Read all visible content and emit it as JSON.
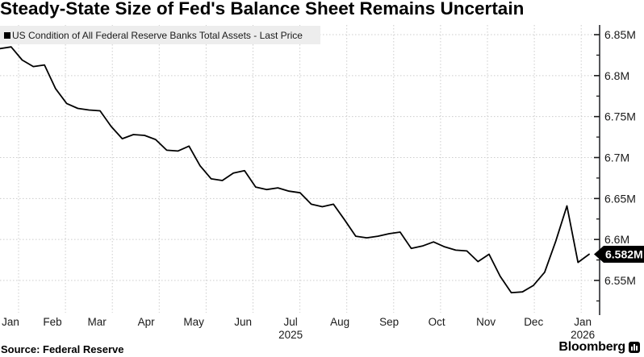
{
  "title": "Steady-State Size of Fed's Balance Sheet Remains Uncertain",
  "legend": {
    "marker_icon": "black-square",
    "label": "US Condition of All Federal Reserve Banks Total Assets - Last Price"
  },
  "footer": {
    "source": "Source: Federal Reserve",
    "brand": "Bloomberg",
    "brand_icon": "bloomberg-terminal-icon"
  },
  "chart_data": {
    "type": "line",
    "title": "Steady-State Size of Fed's Balance Sheet Remains Uncertain",
    "ylabel": "",
    "xlabel": "",
    "unit": "M",
    "grid": "dotted",
    "legend_position": "top-left",
    "series": [
      {
        "name": "US Condition of All Federal Reserve Banks Total Assets - Last Price",
        "color": "#000000",
        "dates": [
          "2025-01-01",
          "2025-01-08",
          "2025-01-15",
          "2025-01-22",
          "2025-01-29",
          "2025-02-05",
          "2025-02-12",
          "2025-02-19",
          "2025-02-26",
          "2025-03-05",
          "2025-03-12",
          "2025-03-19",
          "2025-03-26",
          "2025-04-02",
          "2025-04-09",
          "2025-04-16",
          "2025-04-23",
          "2025-04-30",
          "2025-05-07",
          "2025-05-14",
          "2025-05-21",
          "2025-05-28",
          "2025-06-04",
          "2025-06-11",
          "2025-06-18",
          "2025-06-25",
          "2025-07-02",
          "2025-07-09",
          "2025-07-16",
          "2025-07-23",
          "2025-07-30",
          "2025-08-06",
          "2025-08-13",
          "2025-08-20",
          "2025-08-27",
          "2025-09-03",
          "2025-09-10",
          "2025-09-17",
          "2025-09-24",
          "2025-10-01",
          "2025-10-08",
          "2025-10-15",
          "2025-10-22",
          "2025-10-29",
          "2025-11-05",
          "2025-11-12",
          "2025-11-19",
          "2025-11-26",
          "2025-12-03",
          "2025-12-10",
          "2025-12-17",
          "2025-12-24",
          "2025-12-31",
          "2026-01-07"
        ],
        "values": [
          6.833,
          6.835,
          6.819,
          6.811,
          6.813,
          6.784,
          6.766,
          6.76,
          6.758,
          6.757,
          6.738,
          6.723,
          6.728,
          6.727,
          6.722,
          6.709,
          6.708,
          6.714,
          6.69,
          6.674,
          6.672,
          6.681,
          6.684,
          6.664,
          6.661,
          6.663,
          6.659,
          6.657,
          6.643,
          6.64,
          6.643,
          6.624,
          6.604,
          6.602,
          6.604,
          6.607,
          6.609,
          6.589,
          6.592,
          6.597,
          6.591,
          6.587,
          6.586,
          6.573,
          6.582,
          6.555,
          6.535,
          6.536,
          6.544,
          6.56,
          6.598,
          6.641,
          6.572,
          6.582
        ]
      }
    ],
    "last_price": {
      "value": 6.582,
      "label": "6.582M",
      "bg": "#000000",
      "fg": "#ffffff"
    },
    "y_axis": {
      "side": "right",
      "ticks": [
        6.55,
        6.6,
        6.65,
        6.7,
        6.75,
        6.8,
        6.85
      ],
      "tick_labels": [
        "6.55M",
        "6.6M",
        "6.65M",
        "6.7M",
        "6.75M",
        "6.8M",
        "6.85M"
      ],
      "minor_tick_step": 0.025,
      "ylim": [
        6.508,
        6.863
      ]
    },
    "x_axis": {
      "month_labels": [
        "Jan",
        "Feb",
        "Mar",
        "Apr",
        "May",
        "Jun",
        "Jul",
        "Aug",
        "Sep",
        "Oct",
        "Nov",
        "Dec",
        "Jan"
      ],
      "year_labels": [
        {
          "label": "2025",
          "under_month_index": 6
        },
        {
          "label": "2026",
          "under_month_index": 12
        }
      ],
      "start_date": "2025-01-01",
      "end_date": "2026-01-07"
    },
    "colors": {
      "line": "#000000",
      "axis": "#55565a",
      "tick": "#1a1a1a",
      "text": "#1a1a1a",
      "gridline": "#cccccc",
      "legend_bg": "#ededed",
      "background": "#ffffff"
    }
  }
}
